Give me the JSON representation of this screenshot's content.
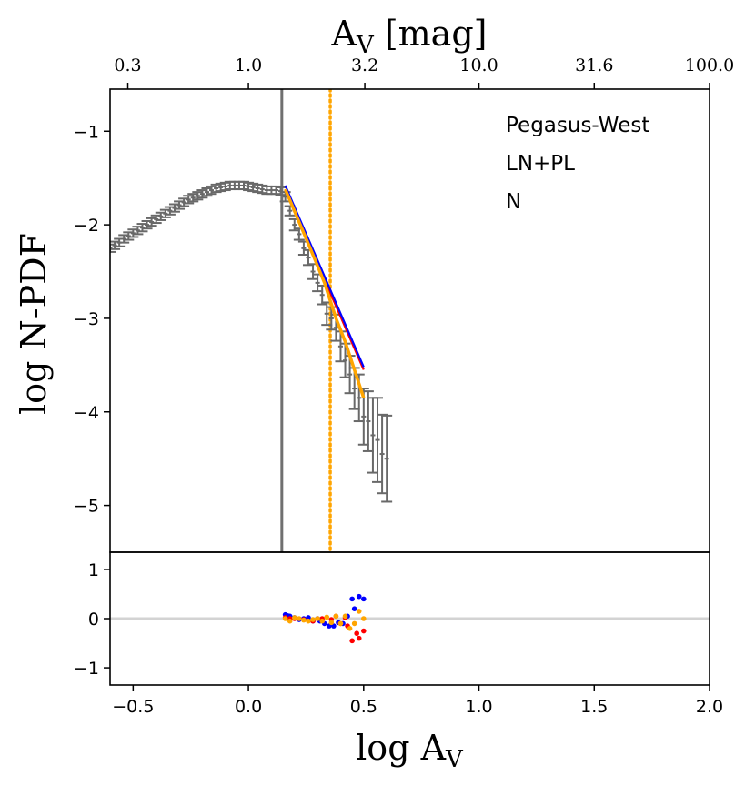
{
  "chart_data": {
    "type": "scatter",
    "title": "",
    "top_axis": {
      "label_main": "A",
      "label_sub": "V",
      "label_unit": " [mag]",
      "ticks": [
        {
          "label": "0.3",
          "log_value": -0.523
        },
        {
          "label": "1.0",
          "log_value": 0.0
        },
        {
          "label": "3.2",
          "log_value": 0.505
        },
        {
          "label": "10.0",
          "log_value": 1.0
        },
        {
          "label": "31.6",
          "log_value": 1.5
        },
        {
          "label": "100.0",
          "log_value": 2.0
        }
      ]
    },
    "xlabel": {
      "main": "log A",
      "sub": "V"
    },
    "ylabel": "log N-PDF",
    "xlim": [
      -0.6,
      2.0
    ],
    "main_panel": {
      "ylim": [
        -5.5,
        -0.55
      ],
      "yticks": [
        {
          "value": -1,
          "label": "−1"
        },
        {
          "value": -2,
          "label": "−2"
        },
        {
          "value": -3,
          "label": "−3"
        },
        {
          "value": -4,
          "label": "−4"
        },
        {
          "value": -5,
          "label": "−5"
        }
      ],
      "annotations": [
        "Pegasus-West",
        "LN+PL",
        "N"
      ],
      "vertical_lines": [
        {
          "name": "threshold-line",
          "x": 0.145,
          "color": "#707070",
          "style": "solid"
        },
        {
          "name": "transition-line",
          "x": 0.355,
          "color": "#ffa500",
          "style": "dotted"
        }
      ],
      "data_series": {
        "name": "N-PDF data",
        "color": "#696969",
        "x": [
          -0.6,
          -0.58,
          -0.56,
          -0.54,
          -0.52,
          -0.5,
          -0.48,
          -0.46,
          -0.44,
          -0.42,
          -0.4,
          -0.38,
          -0.36,
          -0.34,
          -0.32,
          -0.3,
          -0.28,
          -0.26,
          -0.24,
          -0.22,
          -0.2,
          -0.18,
          -0.16,
          -0.14,
          -0.12,
          -0.1,
          -0.08,
          -0.06,
          -0.04,
          -0.02,
          0.0,
          0.02,
          0.04,
          0.06,
          0.08,
          0.1,
          0.12,
          0.14,
          0.16,
          0.18,
          0.2,
          0.22,
          0.24,
          0.26,
          0.28,
          0.3,
          0.32,
          0.34,
          0.36,
          0.38,
          0.4,
          0.42,
          0.44,
          0.46,
          0.48,
          0.5,
          0.52,
          0.54,
          0.56,
          0.58,
          0.6
        ],
        "y": [
          -2.25,
          -2.22,
          -2.19,
          -2.15,
          -2.12,
          -2.09,
          -2.06,
          -2.03,
          -2.0,
          -1.97,
          -1.94,
          -1.91,
          -1.88,
          -1.85,
          -1.82,
          -1.79,
          -1.76,
          -1.73,
          -1.71,
          -1.69,
          -1.67,
          -1.65,
          -1.63,
          -1.61,
          -1.6,
          -1.59,
          -1.58,
          -1.58,
          -1.58,
          -1.58,
          -1.59,
          -1.6,
          -1.61,
          -1.62,
          -1.63,
          -1.63,
          -1.63,
          -1.64,
          -1.7,
          -1.85,
          -2.0,
          -2.1,
          -2.25,
          -2.35,
          -2.5,
          -2.62,
          -2.75,
          -2.95,
          -3.0,
          -3.1,
          -3.3,
          -3.45,
          -3.6,
          -3.75,
          -3.85,
          -4.05,
          -4.1,
          -4.25,
          -4.3,
          -4.45,
          -4.5
        ],
        "yerr": [
          0.04,
          0.04,
          0.04,
          0.04,
          0.04,
          0.04,
          0.04,
          0.04,
          0.04,
          0.04,
          0.04,
          0.04,
          0.04,
          0.04,
          0.04,
          0.04,
          0.04,
          0.04,
          0.04,
          0.04,
          0.04,
          0.04,
          0.04,
          0.04,
          0.04,
          0.04,
          0.04,
          0.04,
          0.04,
          0.04,
          0.04,
          0.04,
          0.04,
          0.04,
          0.04,
          0.04,
          0.04,
          0.04,
          0.05,
          0.05,
          0.06,
          0.06,
          0.07,
          0.08,
          0.08,
          0.09,
          0.1,
          0.12,
          0.12,
          0.14,
          0.16,
          0.18,
          0.2,
          0.22,
          0.25,
          0.3,
          0.32,
          0.4,
          0.45,
          0.42,
          0.46
        ]
      },
      "fits": [
        {
          "name": "red-fit",
          "color": "#ff0000",
          "x": [
            0.16,
            0.5
          ],
          "y": [
            -1.62,
            -3.55
          ]
        },
        {
          "name": "blue-fit",
          "color": "#0000ff",
          "x": [
            0.16,
            0.5
          ],
          "y": [
            -1.58,
            -3.52
          ]
        },
        {
          "name": "orange-fit",
          "color": "#ffa500",
          "x": [
            0.16,
            0.22,
            0.28,
            0.33,
            0.38,
            0.42,
            0.46,
            0.5
          ],
          "y": [
            -1.62,
            -1.97,
            -2.32,
            -2.62,
            -3.0,
            -3.25,
            -3.55,
            -3.85
          ]
        }
      ]
    },
    "residual_panel": {
      "ylim": [
        -1.35,
        1.35
      ],
      "zero_line_color": "#d3d3d3",
      "yticks": [
        {
          "value": 1,
          "label": "1"
        },
        {
          "value": 0,
          "label": "0"
        },
        {
          "value": -1,
          "label": "−1"
        }
      ],
      "series": [
        {
          "name": "blue-residuals",
          "color": "#0000ff",
          "x": [
            0.16,
            0.17,
            0.18,
            0.2,
            0.22,
            0.24,
            0.26,
            0.28,
            0.3,
            0.31,
            0.33,
            0.35,
            0.37,
            0.39,
            0.41,
            0.43,
            0.45,
            0.46,
            0.48,
            0.5
          ],
          "y": [
            0.08,
            0.06,
            0.05,
            0.02,
            -0.02,
            0.0,
            0.02,
            -0.05,
            0.0,
            -0.05,
            -0.1,
            -0.15,
            -0.15,
            -0.08,
            -0.1,
            0.05,
            0.4,
            0.2,
            0.45,
            0.4
          ]
        },
        {
          "name": "red-residuals",
          "color": "#ff0000",
          "x": [
            0.16,
            0.18,
            0.2,
            0.24,
            0.28,
            0.32,
            0.36,
            0.38,
            0.4,
            0.42,
            0.43,
            0.45,
            0.47,
            0.48,
            0.5
          ],
          "y": [
            0.02,
            0.0,
            0.0,
            -0.02,
            -0.05,
            0.0,
            -0.02,
            0.05,
            -0.1,
            0.02,
            -0.15,
            -0.45,
            -0.3,
            -0.4,
            -0.25
          ]
        },
        {
          "name": "orange-residuals",
          "color": "#ffa500",
          "x": [
            0.16,
            0.18,
            0.2,
            0.22,
            0.24,
            0.26,
            0.28,
            0.3,
            0.32,
            0.34,
            0.36,
            0.38,
            0.4,
            0.42,
            0.44,
            0.46,
            0.48,
            0.5
          ],
          "y": [
            0.0,
            -0.05,
            0.02,
            0.0,
            -0.03,
            -0.05,
            -0.02,
            0.0,
            -0.05,
            0.03,
            -0.08,
            0.05,
            -0.1,
            0.05,
            -0.2,
            -0.1,
            0.15,
            0.0
          ]
        }
      ]
    },
    "bottom_xticks": [
      {
        "value": -0.5,
        "label": "−0.5"
      },
      {
        "value": 0.0,
        "label": "0.0"
      },
      {
        "value": 0.5,
        "label": "0.5"
      },
      {
        "value": 1.0,
        "label": "1.0"
      },
      {
        "value": 1.5,
        "label": "1.5"
      },
      {
        "value": 2.0,
        "label": "2.0"
      }
    ]
  }
}
